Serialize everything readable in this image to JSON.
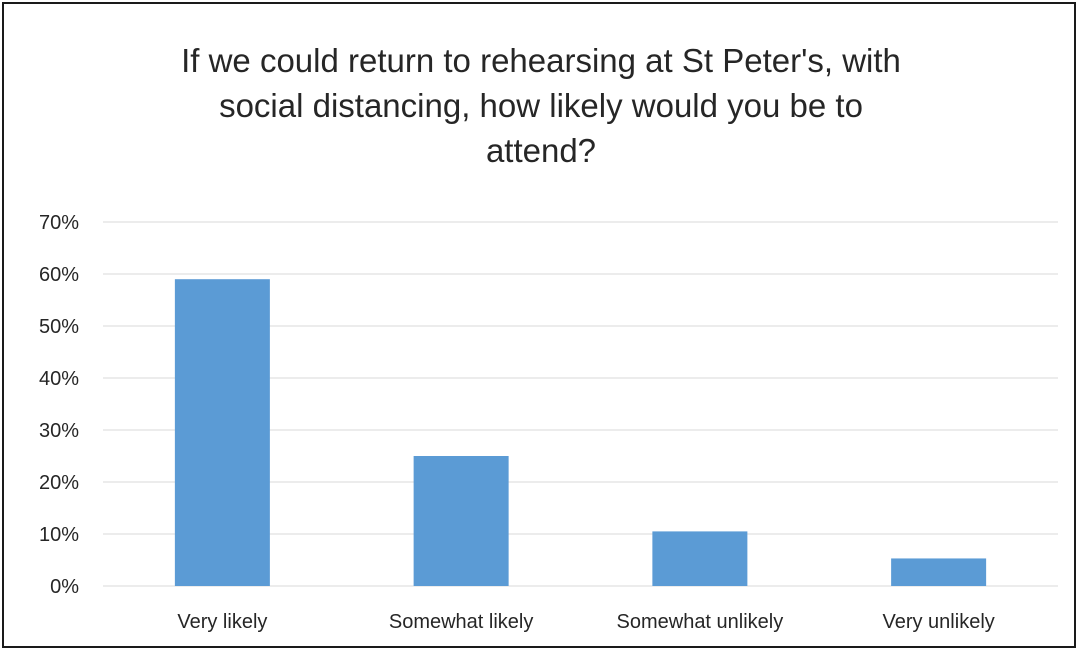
{
  "chart_data": {
    "type": "bar",
    "title_lines": [
      "If we could return to rehearsing at St Peter's, with",
      "social distancing, how likely would you be to",
      "attend?"
    ],
    "categories": [
      "Very likely",
      "Somewhat likely",
      "Somewhat unlikely",
      "Very unlikely"
    ],
    "values": [
      59,
      25,
      10.5,
      5.3
    ],
    "value_format": "percent",
    "ylim": [
      0,
      70
    ],
    "yticks": [
      "0%",
      "10%",
      "20%",
      "30%",
      "40%",
      "50%",
      "60%",
      "70%"
    ],
    "grid": true,
    "legend": "none",
    "bar_color": "#5b9bd5",
    "grid_color": "#d9d9d9"
  }
}
